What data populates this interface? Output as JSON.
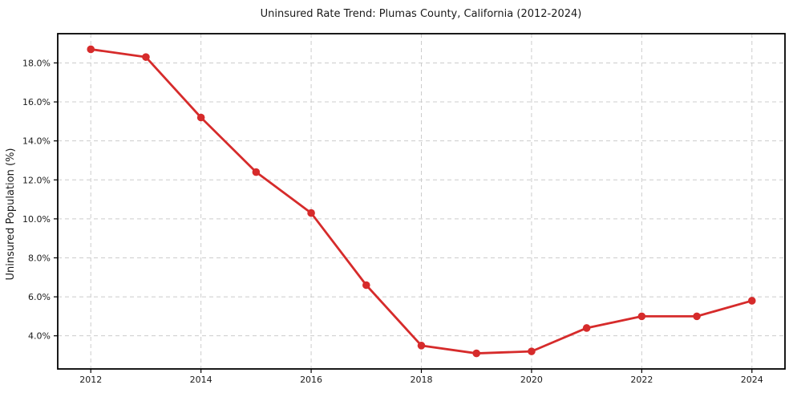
{
  "chart_data": {
    "type": "line",
    "title": "Uninsured Rate Trend: Plumas County, California (2012-2024)",
    "xlabel": "",
    "ylabel": "Uninsured Population (%)",
    "x": [
      2012,
      2013,
      2014,
      2015,
      2016,
      2017,
      2018,
      2019,
      2020,
      2021,
      2022,
      2023,
      2024
    ],
    "values": [
      18.7,
      18.3,
      15.2,
      12.4,
      10.3,
      6.6,
      3.5,
      3.1,
      3.2,
      4.4,
      5.0,
      5.0,
      5.8
    ],
    "x_tick_values": [
      2012,
      2014,
      2016,
      2018,
      2020,
      2022,
      2024
    ],
    "x_tick_labels": [
      "2012",
      "2014",
      "2016",
      "2018",
      "2020",
      "2022",
      "2024"
    ],
    "y_tick_values": [
      4,
      6,
      8,
      10,
      12,
      14,
      16,
      18
    ],
    "y_tick_labels": [
      "4.0%",
      "6.0%",
      "8.0%",
      "10.0%",
      "12.0%",
      "14.0%",
      "16.0%",
      "18.0%"
    ],
    "xlim": [
      2011.4,
      2024.6
    ],
    "ylim": [
      2.3,
      19.5
    ],
    "grid": true,
    "grid_style": "dashed",
    "legend": false,
    "marker": "circle",
    "line_color": "#d62b2b",
    "grid_color": "#cccccc",
    "axis_color": "#000000",
    "text_color": "#1a1a1a",
    "background": "#ffffff"
  }
}
